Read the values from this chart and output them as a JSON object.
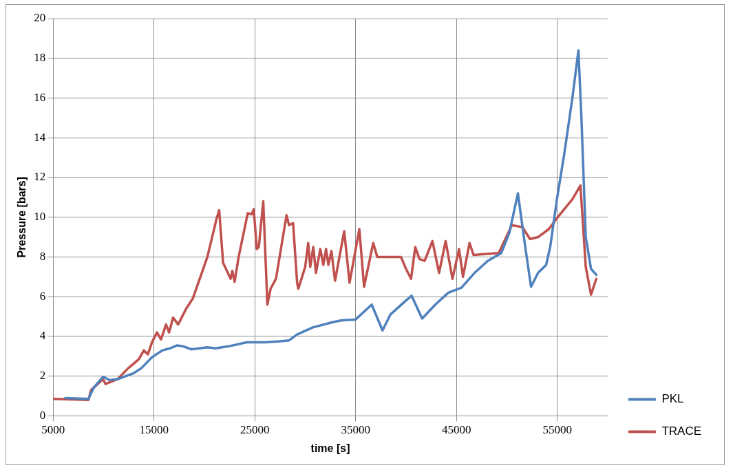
{
  "chart_data": {
    "type": "line",
    "xlabel": "time [s]",
    "ylabel": "Pressure [bars]",
    "xlim": [
      5000,
      60000
    ],
    "xticks": [
      5000,
      15000,
      25000,
      35000,
      45000,
      55000
    ],
    "ylim": [
      0,
      20
    ],
    "yticks": [
      0,
      2,
      4,
      6,
      8,
      10,
      12,
      14,
      16,
      18,
      20
    ],
    "grid": true,
    "legend": "bottom right",
    "marker": "none",
    "line_style": "solid",
    "series": [
      {
        "name": "PKL",
        "color": "#4f81bd",
        "x": [
          6200,
          8500,
          9000,
          9950,
          10600,
          11400,
          13000,
          13750,
          14800,
          15850,
          16600,
          17300,
          17900,
          18700,
          20300,
          21100,
          22400,
          24200,
          26000,
          27350,
          28400,
          29200,
          30750,
          32600,
          33550,
          35000,
          36600,
          37670,
          38450,
          39760,
          40550,
          41600,
          42900,
          44200,
          45500,
          46800,
          48100,
          49450,
          50240,
          51100,
          51800,
          52400,
          53100,
          53900,
          54300,
          55000,
          55700,
          56500,
          57100,
          57400,
          57830,
          58350,
          58870
        ],
        "values": [
          0.9,
          0.85,
          1.4,
          1.97,
          1.8,
          1.85,
          2.15,
          2.4,
          2.95,
          3.3,
          3.4,
          3.55,
          3.5,
          3.35,
          3.45,
          3.4,
          3.5,
          3.7,
          3.7,
          3.75,
          3.8,
          4.1,
          4.45,
          4.7,
          4.8,
          4.85,
          5.6,
          4.3,
          5.1,
          5.7,
          6.05,
          4.9,
          5.6,
          6.2,
          6.45,
          7.2,
          7.8,
          8.2,
          9.2,
          11.2,
          8.6,
          6.5,
          7.2,
          7.6,
          8.5,
          11.0,
          13.2,
          16.0,
          18.4,
          15.0,
          9.0,
          7.4,
          7.1
        ]
      },
      {
        "name": "TRACE",
        "color": "#c0504d",
        "x": [
          5000,
          8500,
          8770,
          9950,
          10200,
          11400,
          12450,
          13500,
          14000,
          14400,
          14800,
          15300,
          15700,
          16200,
          16500,
          16900,
          17400,
          18200,
          18850,
          20300,
          21200,
          21470,
          21860,
          22600,
          22770,
          23000,
          23400,
          24300,
          24700,
          24900,
          25200,
          25400,
          25840,
          26250,
          26570,
          27100,
          28150,
          28400,
          28800,
          29200,
          29320,
          30000,
          30300,
          30500,
          30800,
          31070,
          31500,
          31800,
          32070,
          32300,
          32600,
          32960,
          33870,
          34400,
          35370,
          35840,
          36750,
          37150,
          37930,
          39500,
          40000,
          40500,
          40920,
          41330,
          41850,
          42620,
          43280,
          43930,
          44610,
          45260,
          45650,
          46300,
          46700,
          49200,
          50500,
          51550,
          52300,
          53100,
          54160,
          55200,
          56500,
          57300,
          57830,
          58350,
          58870
        ],
        "values": [
          0.85,
          0.8,
          1.3,
          1.85,
          1.6,
          1.85,
          2.4,
          2.85,
          3.3,
          3.1,
          3.7,
          4.2,
          3.85,
          4.6,
          4.2,
          4.95,
          4.6,
          5.4,
          5.9,
          8.0,
          9.9,
          10.35,
          7.7,
          6.9,
          7.3,
          6.75,
          8.0,
          10.2,
          10.15,
          10.4,
          8.4,
          8.5,
          10.8,
          5.6,
          6.4,
          6.9,
          10.1,
          9.6,
          9.7,
          6.7,
          6.4,
          7.5,
          8.7,
          7.5,
          8.5,
          7.2,
          8.4,
          7.6,
          8.4,
          7.6,
          8.3,
          6.8,
          9.3,
          6.7,
          9.4,
          6.5,
          8.7,
          8.0,
          8.0,
          8.0,
          7.4,
          6.9,
          8.5,
          7.9,
          7.8,
          8.8,
          7.2,
          8.8,
          6.9,
          8.4,
          7.0,
          8.7,
          8.1,
          8.2,
          9.6,
          9.5,
          8.9,
          9.0,
          9.4,
          10.1,
          10.9,
          11.6,
          7.5,
          6.1,
          6.9
        ]
      }
    ]
  }
}
